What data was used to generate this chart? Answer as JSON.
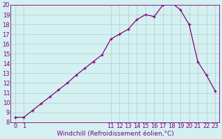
{
  "x": [
    0,
    1,
    2,
    3,
    4,
    5,
    6,
    7,
    8,
    9,
    10,
    11,
    12,
    13,
    14,
    15,
    16,
    17,
    18,
    19,
    20,
    21,
    22,
    23
  ],
  "y": [
    8.5,
    8.5,
    9.2,
    9.9,
    10.6,
    11.3,
    12.0,
    12.8,
    13.5,
    14.2,
    14.9,
    16.5,
    17.0,
    17.5,
    18.5,
    19.0,
    18.8,
    20.0,
    20.2,
    19.5,
    18.0,
    14.2,
    12.8,
    11.2
  ],
  "line_color": "#800080",
  "marker": "+",
  "bg_color": "#d5f0f0",
  "grid_color": "#aacece",
  "xlabel": "Windchill (Refroidissement éolien,°C)",
  "ylim_min": 8,
  "ylim_max": 20,
  "xlim_min": -0.5,
  "xlim_max": 23.5,
  "yticks": [
    8,
    9,
    10,
    11,
    12,
    13,
    14,
    15,
    16,
    17,
    18,
    19,
    20
  ],
  "xticks": [
    0,
    1,
    11,
    12,
    13,
    14,
    15,
    16,
    17,
    18,
    19,
    20,
    21,
    22,
    23
  ],
  "xlabel_color": "#800080",
  "tick_color": "#800080",
  "axis_color": "#800080",
  "fontsize_xlabel": 6.5,
  "fontsize_ticks": 6.0,
  "linewidth": 0.9,
  "markersize": 3.0,
  "markeredgewidth": 0.9
}
